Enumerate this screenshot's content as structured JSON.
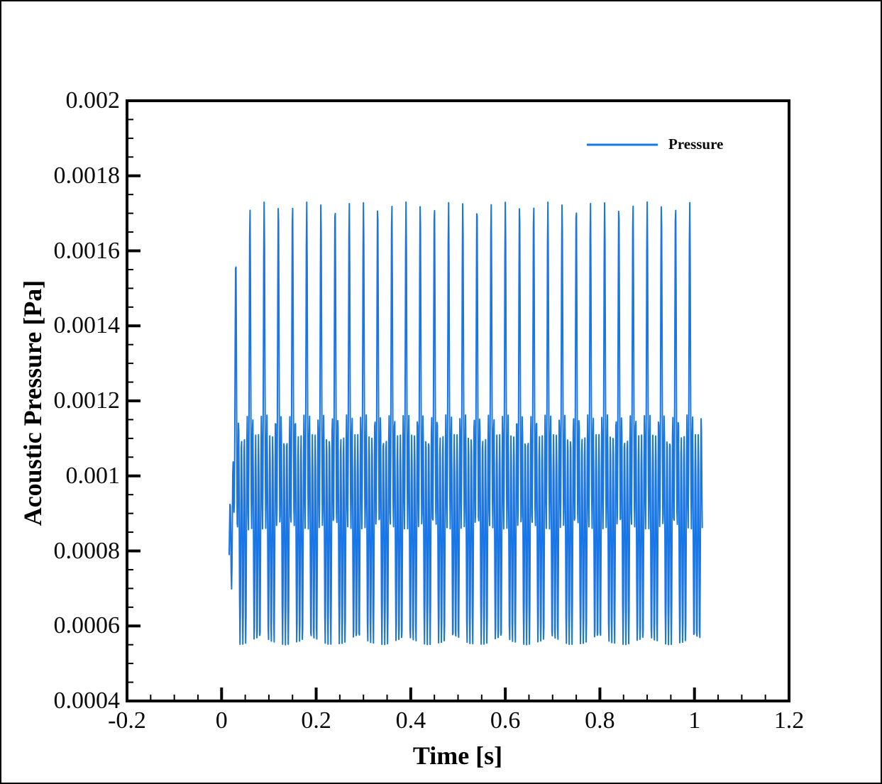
{
  "figure": {
    "background": "#ffffff",
    "border_color": "#000000",
    "frame_color": "#000000"
  },
  "chart_data": {
    "type": "line",
    "title": "",
    "xlabel": "Time [s]",
    "ylabel": "Acoustic Pressure [Pa]",
    "xlim": [
      -0.2,
      1.2
    ],
    "ylim": [
      0.0004,
      0.002
    ],
    "grid": false,
    "x_ticks": [
      {
        "value": -0.2,
        "label": "-0.2"
      },
      {
        "value": 0,
        "label": "0"
      },
      {
        "value": 0.2,
        "label": "0.2"
      },
      {
        "value": 0.4,
        "label": "0.4"
      },
      {
        "value": 0.6,
        "label": "0.6"
      },
      {
        "value": 0.8,
        "label": "0.8"
      },
      {
        "value": 1,
        "label": "1"
      },
      {
        "value": 1.2,
        "label": "1.2"
      }
    ],
    "x_minor_step": 0.05,
    "y_ticks": [
      {
        "value": 0.002,
        "label": "0.002"
      },
      {
        "value": 0.0018,
        "label": "0.0018"
      },
      {
        "value": 0.0016,
        "label": "0.0016"
      },
      {
        "value": 0.0014,
        "label": "0.0014"
      },
      {
        "value": 0.0012,
        "label": "0.0012"
      },
      {
        "value": 0.001,
        "label": "0.001"
      },
      {
        "value": 0.0008,
        "label": "0.0008"
      },
      {
        "value": 0.0006,
        "label": "0.0006"
      },
      {
        "value": 0.0004,
        "label": "0.0004"
      }
    ],
    "y_minor_step": 5e-05,
    "legend": {
      "position": "upper-right-inside",
      "entries": [
        {
          "label": "Pressure",
          "color": "#1777E8"
        }
      ]
    },
    "series": [
      {
        "name": "Pressure",
        "color": "#1777E8",
        "line_width": 2,
        "signal_model": {
          "description": "Acoustic pressure time history: a 166.7 Hz carrier oscillating between 0.00055 and 0.00111 Pa, with narrow periodic 33.3 Hz pulses whose peaks reach 0.00173 Pa; signal active from t=0.016 s to t=1.017 s with a short startup transient.",
          "t_start": 0.016,
          "t_end": 1.017,
          "sample_dt": 0.00085,
          "mean": 0.00083,
          "carrier_amplitude": 0.00028,
          "carrier_frequency_hz": 166.667,
          "pulse_amplitude": 0.00062,
          "pulse_frequency_hz": 33.333,
          "pulse_phase_offset_s": 0.015,
          "pulse_sharpness": 12,
          "peak_value": 0.00173,
          "band_min": 0.00055,
          "band_max": 0.00111,
          "startup": {
            "carrier_ramp_start": 0.012,
            "carrier_ramp_len": 0.028,
            "pulse_env_base": 0.8,
            "pulse_env_rate": 4
          }
        }
      }
    ]
  }
}
